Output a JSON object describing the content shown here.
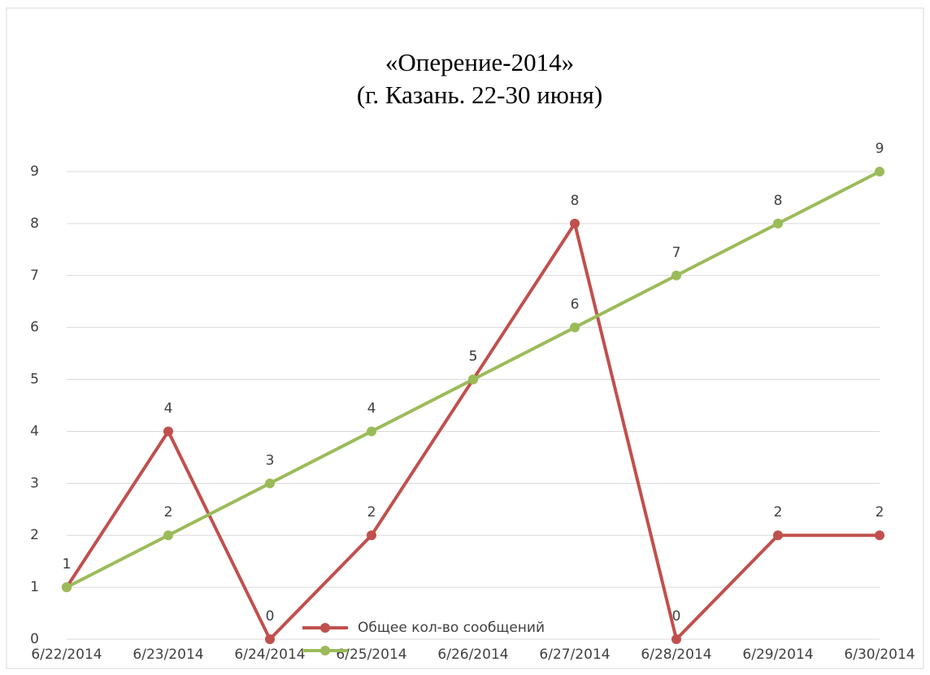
{
  "chart_data": {
    "type": "line",
    "title": [
      "«Оперение-2014»",
      "(г. Казань. 22-30 июня)"
    ],
    "categories": [
      "6/22/2014",
      "6/23/2014",
      "6/24/2014",
      "6/25/2014",
      "6/26/2014",
      "6/27/2014",
      "6/28/2014",
      "6/29/2014",
      "6/30/2014"
    ],
    "series": [
      {
        "name": "Общее кол-во сообщений",
        "color": "#c0504d",
        "values": [
          1,
          4,
          0,
          2,
          5,
          8,
          0,
          2,
          2
        ]
      },
      {
        "color": "#9bbb59",
        "values": [
          1,
          2,
          3,
          4,
          5,
          6,
          7,
          8,
          9
        ]
      }
    ],
    "ylim": [
      0,
      9
    ],
    "yticks": [
      0,
      1,
      2,
      3,
      4,
      5,
      6,
      7,
      8,
      9
    ],
    "grid": true,
    "legend": "bottom"
  }
}
